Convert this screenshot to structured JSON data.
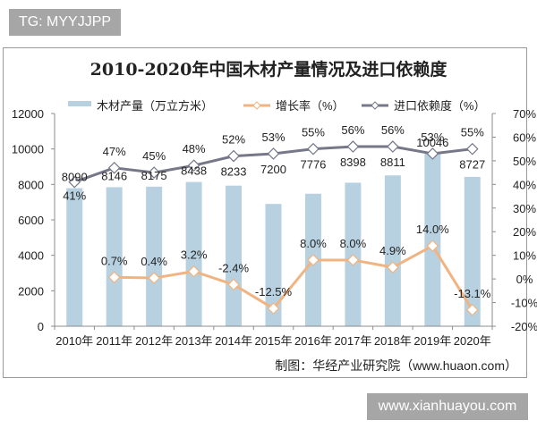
{
  "watermarks": {
    "top": "TG: MYYJJPP",
    "bottom": "www.xianhuayou.com"
  },
  "source": "制图：华经产业研究院（www.huaon.com）",
  "colors": {
    "bar": "#b7d1e0",
    "growth": "#f0b482",
    "dependency": "#767889",
    "marker_fill": "#ffffff"
  },
  "chart_data": {
    "type": "bar",
    "title": "2010-2020年中国木材产量情况及进口依赖度",
    "xlabel": "",
    "ylabel": "",
    "categories": [
      "2010年",
      "2011年",
      "2012年",
      "2013年",
      "2014年",
      "2015年",
      "2016年",
      "2017年",
      "2018年",
      "2019年",
      "2020年"
    ],
    "left_axis": {
      "range": [
        0,
        12000
      ],
      "ticks": [
        "0",
        "2000",
        "4000",
        "6000",
        "8000",
        "10000",
        "12000"
      ]
    },
    "right_axis": {
      "range": [
        -20,
        70
      ],
      "ticks": [
        "-20%",
        "-10%",
        "0%",
        "10%",
        "20%",
        "30%",
        "40%",
        "50%",
        "60%",
        "70%"
      ]
    },
    "legend_position": "top",
    "grid": false,
    "series": [
      {
        "name": "木材产量（万立方米）",
        "type": "bar",
        "axis": "left",
        "values": [
          8090,
          8146,
          8175,
          8438,
          8233,
          7200,
          7776,
          8398,
          8811,
          10046,
          8727
        ],
        "labels": [
          "8090",
          "8146",
          "8175",
          "8438",
          "8233",
          "7200",
          "7776",
          "8398",
          "8811",
          "10046",
          "8727"
        ]
      },
      {
        "name": "增长率（%）",
        "type": "line",
        "axis": "right",
        "values": [
          null,
          0.7,
          0.4,
          3.2,
          -2.4,
          -12.5,
          8.0,
          8.0,
          4.9,
          14.0,
          -13.1
        ],
        "labels": [
          "",
          "0.7%",
          "0.4%",
          "3.2%",
          "-2.4%",
          "-12.5%",
          "8.0%",
          "8.0%",
          "4.9%",
          "14.0%",
          "-13.1%"
        ]
      },
      {
        "name": "进口依赖度（%）",
        "type": "line",
        "axis": "right",
        "values": [
          41,
          47,
          45,
          48,
          52,
          53,
          55,
          56,
          56,
          53,
          55
        ],
        "labels": [
          "41%",
          "47%",
          "45%",
          "48%",
          "52%",
          "53%",
          "55%",
          "56%",
          "56%",
          "53%",
          "55%"
        ]
      }
    ]
  }
}
